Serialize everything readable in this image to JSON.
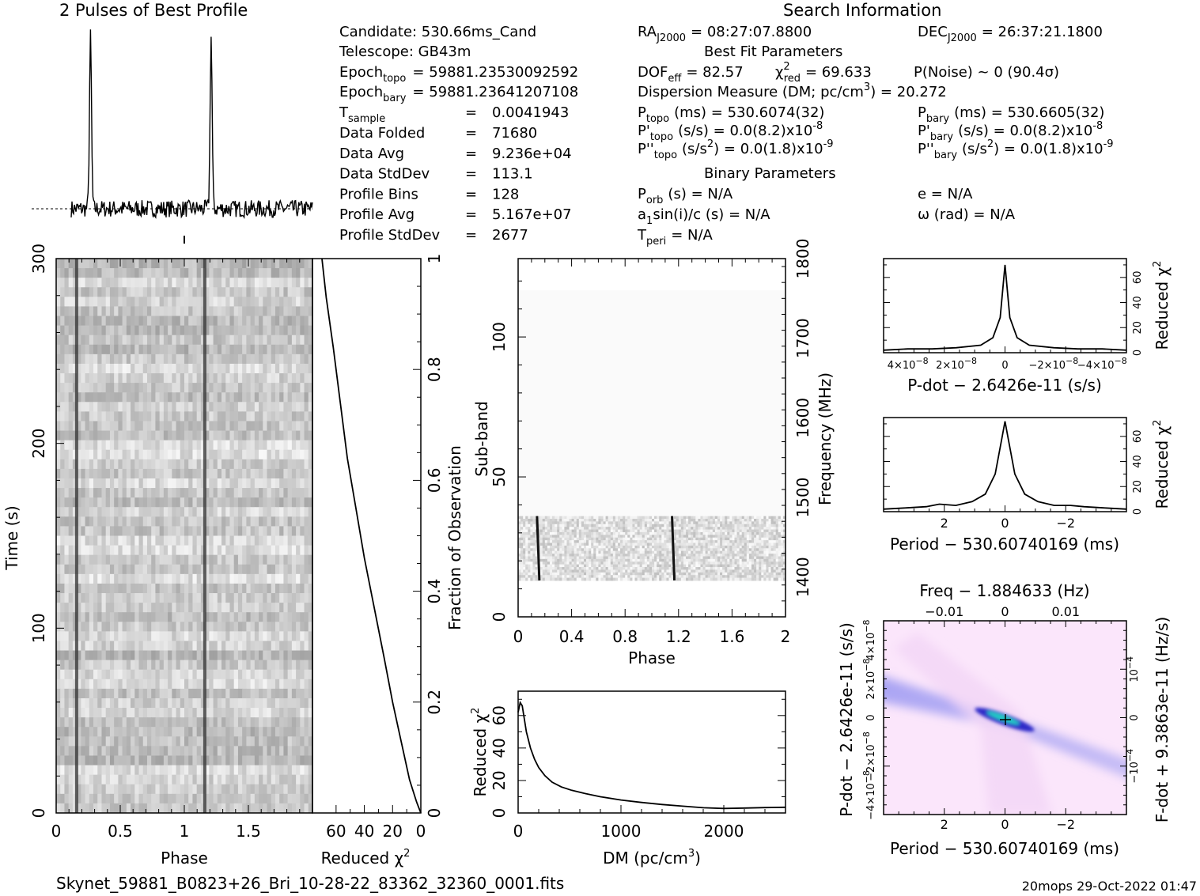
{
  "header": {
    "profile_title": "2 Pulses of Best Profile",
    "search_title": "Search Information",
    "best_fit_title": "Best Fit Parameters",
    "binary_title": "Binary Parameters"
  },
  "info": {
    "candidate": "Candidate:  530.66ms_Cand",
    "telescope": "Telescope:  GB43m",
    "epoch_topo_lbl": "Epoch",
    "epoch_topo_sub": "topo",
    "epoch_topo_val": "= 59881.23530092592",
    "epoch_bary_lbl": "Epoch",
    "epoch_bary_sub": "bary",
    "epoch_bary_val": "= 59881.23641207108",
    "tsample_lbl": "T",
    "tsample_sub": "sample",
    "tsample_eq": "=",
    "tsample_val": "0.0041943",
    "rows": [
      {
        "label": "Data Folded",
        "eq": "=",
        "value": "71680"
      },
      {
        "label": "Data Avg",
        "eq": "=",
        "value": "9.236e+04"
      },
      {
        "label": "Data StdDev",
        "eq": "=",
        "value": "113.1"
      },
      {
        "label": "Profile Bins",
        "eq": "=",
        "value": "128"
      },
      {
        "label": "Profile Avg",
        "eq": "=",
        "value": "5.167e+07"
      },
      {
        "label": "Profile StdDev",
        "eq": "=",
        "value": "2677"
      }
    ]
  },
  "search": {
    "ra_lbl": "RA",
    "ra_sub": "J2000",
    "ra_val": "= 08:27:07.8800",
    "dec_lbl": "DEC",
    "dec_sub": "J2000",
    "dec_val": "= 26:37:21.1800",
    "dof_lbl": "DOF",
    "dof_sub": "eff",
    "dof_val": "= 82.57",
    "chi_lbl": "χ",
    "chi_sup": "2",
    "chi_sub": "red",
    "chi_val": "= 69.633",
    "pnoise": "P(Noise) ~ 0    (90.4σ)",
    "dm_text": "Dispersion Measure (DM; pc/cm",
    "dm_sup": "3",
    "dm_val": ") = 20.272",
    "ptopo_lbl": "P",
    "ptopo_sub": "topo",
    "ptopo_val": "(ms) =  530.6074(32)",
    "pbary_lbl": "P",
    "pbary_sub": "bary",
    "pbary_val": "(ms) =  530.6605(32)",
    "pdtopo_lbl": "P'",
    "pdtopo_sub": "topo",
    "pdtopo_val": "(s/s) = 0.0(8.2)x10",
    "pdtopo_exp": "-8",
    "pdbary_lbl": "P'",
    "pdbary_sub": "bary",
    "pdbary_val": "(s/s) = 0.0(8.2)x10",
    "pdbary_exp": "-8",
    "pddtopo_lbl": "P''",
    "pddtopo_sub": "topo",
    "pddtopo_unit": "(s/s",
    "pddtopo_unit_sup": "2",
    "pddtopo_val": ") = 0.0(1.8)x10",
    "pddtopo_exp": "-9",
    "pddbary_lbl": "P''",
    "pddbary_sub": "bary",
    "pddbary_unit": "(s/s",
    "pddbary_unit_sup": "2",
    "pddbary_val": ") = 0.0(1.8)x10",
    "pddbary_exp": "-9",
    "porb_lbl": "P",
    "porb_sub": "orb",
    "porb_val": "(s) = N/A",
    "e_val": "e = N/A",
    "a1_text": "a",
    "a1_sub": "1",
    "a1_val": "sin(i)/c (s) = N/A",
    "omega_val": "ω (rad) = N/A",
    "tperi_lbl": "T",
    "tperi_sub": "peri",
    "tperi_val": "= N/A"
  },
  "footer": {
    "filename": "Skynet_59881_B0823+26_Bri_10-28-22_83362_32360_0001.fits",
    "stamp": "20mops 29-Oct-2022 01:47"
  },
  "colors": {
    "ink": "#000000",
    "heat_low": "#fde8fd",
    "heat_mid": "#3a38d8",
    "heat_peak": "#22d8c8"
  },
  "chart_data": [
    {
      "id": "profile",
      "type": "line",
      "title": "2 Pulses of Best Profile",
      "x": "phase",
      "xlim": [
        0,
        2
      ],
      "peaks_at_phase": [
        0.16,
        1.16
      ],
      "pulse_width_phase": 0.012,
      "baseline_level": 0.05,
      "peak_level": 1.0
    },
    {
      "id": "time-phase",
      "type": "heatmap",
      "xlabel": "Phase",
      "ylabel": "Time (s)",
      "xlim": [
        0,
        2
      ],
      "ylim": [
        0,
        300
      ],
      "x_ticks": [
        "0",
        "0.5",
        "1",
        "1.5"
      ],
      "y_ticks": [
        "0",
        "100",
        "200",
        "300"
      ],
      "pulse_phase": [
        0.16,
        1.16
      ]
    },
    {
      "id": "chi-vs-time",
      "type": "line",
      "xlabel": "Reduced χ",
      "xlabel_sup": "2",
      "ylabel": "Fraction of Observation",
      "xlim": [
        70,
        0
      ],
      "ylim": [
        0,
        1
      ],
      "x_ticks": [
        "60",
        "40",
        "20",
        "0"
      ],
      "y_ticks": [
        "0",
        "0.2",
        "0.4",
        "0.6",
        "0.8",
        "1"
      ],
      "x": [
        0,
        3,
        8,
        14,
        20,
        26,
        33,
        40,
        46,
        52,
        57,
        62,
        67,
        70
      ],
      "y": [
        0.0,
        0.02,
        0.06,
        0.13,
        0.2,
        0.28,
        0.37,
        0.46,
        0.55,
        0.64,
        0.74,
        0.84,
        0.93,
        1.0
      ]
    },
    {
      "id": "subband-phase",
      "type": "heatmap",
      "xlabel": "Phase",
      "ylabel": "Sub-band",
      "y2label": "Frequency (MHz)",
      "xlim": [
        0,
        2
      ],
      "ylim": [
        0,
        128
      ],
      "y2lim": [
        1350,
        1800
      ],
      "x_ticks": [
        "0",
        "0.4",
        "0.8",
        "1.2",
        "1.6",
        "2"
      ],
      "y_ticks": [
        "0",
        "50",
        "100"
      ],
      "y2_ticks": [
        "1400",
        "1500",
        "1600",
        "1700",
        "1800"
      ],
      "active_subbands": [
        13,
        36
      ],
      "pulse_phase": [
        0.15,
        1.16
      ]
    },
    {
      "id": "dm-chi",
      "type": "line",
      "xlabel": "DM (pc/cm",
      "xlabel_sup": "3",
      "xlabel_end": ")",
      "ylabel": "Reduced χ",
      "ylabel_sup": "2",
      "xlim": [
        0,
        2600
      ],
      "ylim": [
        0,
        75
      ],
      "x_ticks": [
        "0",
        "1000",
        "2000"
      ],
      "y_ticks": [
        "0",
        "20",
        "40",
        "60"
      ],
      "x": [
        0,
        20,
        40,
        60,
        80,
        120,
        160,
        200,
        260,
        330,
        420,
        520,
        650,
        800,
        1000,
        1200,
        1400,
        1600,
        1800,
        2000,
        2200,
        2400,
        2600
      ],
      "y": [
        62,
        68,
        66,
        58,
        50,
        40,
        33,
        28,
        23,
        19,
        16,
        14,
        12,
        10,
        8,
        6.5,
        5.2,
        4.2,
        3.2,
        2.8,
        3.0,
        3.3,
        3.5
      ]
    },
    {
      "id": "pdot-chi",
      "type": "line",
      "xlabel": "P-dot − 2.6426e-11 (s/s)",
      "ylabel": "Reduced χ",
      "ylabel_sup": "2",
      "xlim": [
        5e-08,
        -5e-08
      ],
      "ylim": [
        0,
        75
      ],
      "x_ticks": [
        "4×10",
        "2×10",
        "0",
        "−2×10",
        "−4×10"
      ],
      "x_tick_exp": "−8",
      "y_ticks": [
        "0",
        "20",
        "40",
        "60"
      ],
      "x": [
        5e-08,
        4e-08,
        3e-08,
        2e-08,
        1e-08,
        5e-09,
        2e-09,
        0,
        -2e-09,
        -5e-09,
        -1e-08,
        -2e-08,
        -3e-08,
        -4e-08,
        -5e-08
      ],
      "y": [
        2,
        3,
        3,
        4,
        6,
        12,
        28,
        70,
        28,
        12,
        6,
        4,
        3,
        3,
        2
      ]
    },
    {
      "id": "period-chi",
      "type": "line",
      "xlabel": "Period − 530.60740169 (ms)",
      "ylabel": "Reduced χ",
      "ylabel_sup": "2",
      "xlim": [
        3.7,
        -3.7
      ],
      "ylim": [
        0,
        75
      ],
      "x_ticks": [
        "2",
        "0",
        "−2"
      ],
      "y_ticks": [
        "0",
        "20",
        "40",
        "60"
      ],
      "x": [
        3.7,
        3,
        2.4,
        2,
        1.5,
        1,
        0.6,
        0.3,
        0.1,
        0,
        -0.1,
        -0.3,
        -0.6,
        -1,
        -1.5,
        -2,
        -2.4,
        -3,
        -3.7
      ],
      "y": [
        2,
        3,
        4,
        6,
        5,
        8,
        14,
        30,
        58,
        72,
        58,
        30,
        14,
        8,
        5,
        5,
        4,
        3,
        2
      ]
    },
    {
      "id": "p-pdot",
      "type": "heatmap",
      "title": "Freq − 1.884633 (Hz)",
      "xlabel": "Period − 530.60740169 (ms)",
      "ylabel": "P-dot − 2.6426e-11 (s/s)",
      "y2label": "F-dot + 9.3863e-11 (Hz/s)",
      "xlim": [
        3.7,
        -3.7
      ],
      "ylim": [
        5e-08,
        -5e-08
      ],
      "x_ticks": [
        "2",
        "0",
        "−2"
      ],
      "top_ticks": [
        "−0.01",
        "0",
        "0.01"
      ],
      "y_ticks": [
        "4×10",
        "2×10",
        "0",
        "−2×10",
        "−4×10"
      ],
      "y_tick_exp": "−8",
      "y2_ticks": [
        "10",
        "0",
        "−10"
      ],
      "y2_tick_exp": "−4",
      "peak": [
        0,
        0
      ]
    }
  ]
}
